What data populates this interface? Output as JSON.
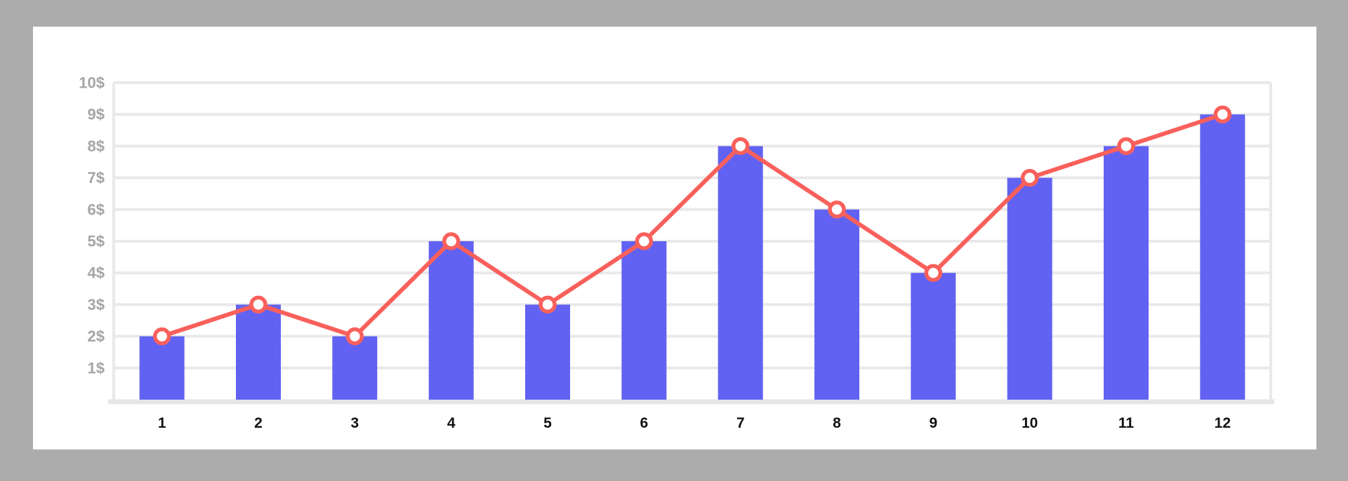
{
  "page": {
    "background_color": "#acacac",
    "card_color": "#ffffff"
  },
  "chart_data": {
    "type": "bar",
    "subtype": "bar-with-line-overlay",
    "title": "",
    "xlabel": "",
    "ylabel": "",
    "categories": [
      "1",
      "2",
      "3",
      "4",
      "5",
      "6",
      "7",
      "8",
      "9",
      "10",
      "11",
      "12"
    ],
    "series": [
      {
        "name": "bars",
        "type": "bar",
        "color": "#6262f2",
        "values": [
          2,
          3,
          2,
          5,
          3,
          5,
          8,
          6,
          4,
          7,
          8,
          9
        ]
      },
      {
        "name": "line",
        "type": "line",
        "color": "#f9605b",
        "marker_fill": "#ffffff",
        "values": [
          2,
          3,
          2,
          5,
          3,
          5,
          8,
          6,
          4,
          7,
          8,
          9
        ]
      }
    ],
    "ylim": [
      0,
      10
    ],
    "y_tick_step": 1,
    "y_tick_labels": [
      "1$",
      "2$",
      "3$",
      "4$",
      "5$",
      "6$",
      "7$",
      "8$",
      "9$",
      "10$"
    ],
    "grid": true,
    "legend_position": "none",
    "styles": {
      "grid_color": "#e9e9e9",
      "axis_color": "#e6e6e6",
      "y_tick_color": "#a5a5a5",
      "x_tick_color": "#111111"
    }
  }
}
